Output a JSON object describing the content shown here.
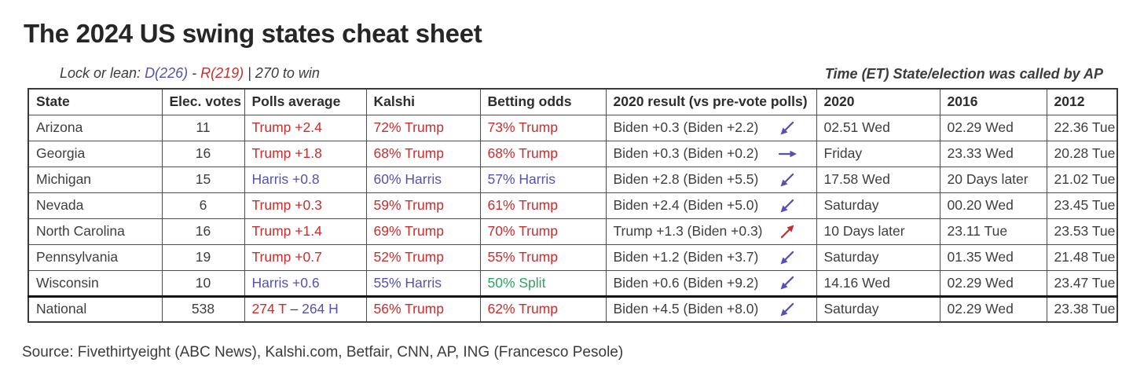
{
  "title": "The 2024 US swing states cheat sheet",
  "subtitle": {
    "prefix": "Lock or lean: ",
    "dem": "D(226)",
    "sep": " - ",
    "rep": "R(219)",
    "suffix": " | 270 to win"
  },
  "right_note": "Time (ET) State/election was called by AP",
  "source": "Source: Fivethirtyeight (ABC News), Kalshi.com, Betfair, CNN, AP, ING (Francesco Pesole)",
  "colors": {
    "red": "#cc2c2c",
    "blue": "#5551ae",
    "green": "#2ba45f",
    "dark": "#3e3e3e"
  },
  "chart_data": {
    "type": "table",
    "columns": [
      "State",
      "Elec. votes",
      "Polls average",
      "Kalshi",
      "Betting odds",
      "2020 result (vs pre-vote polls)",
      "2020",
      "2016",
      "2012"
    ],
    "rows": [
      {
        "state": "Arizona",
        "votes": "11",
        "polls": [
          {
            "t": "Trump +2.4",
            "c": "red"
          }
        ],
        "kalshi": [
          {
            "t": "72% Trump",
            "c": "red"
          }
        ],
        "betting": [
          {
            "t": "73% Trump",
            "c": "red"
          }
        ],
        "result": {
          "text": "Biden +0.3 (Biden +2.2)",
          "arrow": "down-left",
          "arrow_color": "blue"
        },
        "t2020": "02.51 Wed",
        "t2016": "02.29 Wed",
        "t2012": "22.36 Tue"
      },
      {
        "state": "Georgia",
        "votes": "16",
        "polls": [
          {
            "t": "Trump +1.8",
            "c": "red"
          }
        ],
        "kalshi": [
          {
            "t": "68% Trump",
            "c": "red"
          }
        ],
        "betting": [
          {
            "t": "68% Trump",
            "c": "red"
          }
        ],
        "result": {
          "text": "Biden +0.3 (Biden +0.2)",
          "arrow": "right",
          "arrow_color": "blue"
        },
        "t2020": "Friday",
        "t2016": "23.33 Wed",
        "t2012": "20.28 Tue"
      },
      {
        "state": "Michigan",
        "votes": "15",
        "polls": [
          {
            "t": "Harris +0.8",
            "c": "blue"
          }
        ],
        "kalshi": [
          {
            "t": "60% Harris",
            "c": "blue"
          }
        ],
        "betting": [
          {
            "t": "57% Harris",
            "c": "blue"
          }
        ],
        "result": {
          "text": "Biden +2.8 (Biden +5.5)",
          "arrow": "down-left",
          "arrow_color": "blue"
        },
        "t2020": "17.58 Wed",
        "t2016": "20 Days later",
        "t2012": "21.02 Tue"
      },
      {
        "state": "Nevada",
        "votes": "6",
        "polls": [
          {
            "t": "Trump +0.3",
            "c": "red"
          }
        ],
        "kalshi": [
          {
            "t": "59% Trump",
            "c": "red"
          }
        ],
        "betting": [
          {
            "t": "61% Trump",
            "c": "red"
          }
        ],
        "result": {
          "text": "Biden +2.4 (Biden +5.0)",
          "arrow": "down-left",
          "arrow_color": "blue"
        },
        "t2020": "Saturday",
        "t2016": "00.20 Wed",
        "t2012": "23.45 Tue"
      },
      {
        "state": "North Carolina",
        "votes": "16",
        "polls": [
          {
            "t": "Trump +1.4",
            "c": "red"
          }
        ],
        "kalshi": [
          {
            "t": "69% Trump",
            "c": "red"
          }
        ],
        "betting": [
          {
            "t": "70% Trump",
            "c": "red"
          }
        ],
        "result": {
          "text": "Trump +1.3 (Biden +0.3)",
          "arrow": "up-right",
          "arrow_color": "red"
        },
        "t2020": "10 Days later",
        "t2016": "23.11 Tue",
        "t2012": "23.53 Tue"
      },
      {
        "state": "Pennsylvania",
        "votes": "19",
        "polls": [
          {
            "t": "Trump +0.7",
            "c": "red"
          }
        ],
        "kalshi": [
          {
            "t": "52% Trump",
            "c": "red"
          }
        ],
        "betting": [
          {
            "t": "55% Trump",
            "c": "red"
          }
        ],
        "result": {
          "text": "Biden +1.2 (Biden +3.7)",
          "arrow": "down-left",
          "arrow_color": "blue"
        },
        "t2020": "Saturday",
        "t2016": "01.35 Wed",
        "t2012": "21.48 Tue"
      },
      {
        "state": "Wisconsin",
        "votes": "10",
        "polls": [
          {
            "t": "Harris +0.6",
            "c": "blue"
          }
        ],
        "kalshi": [
          {
            "t": "55% Harris",
            "c": "blue"
          }
        ],
        "betting": [
          {
            "t": "50% Split",
            "c": "green"
          }
        ],
        "result": {
          "text": "Biden +0.6 (Biden +9.2)",
          "arrow": "down-left",
          "arrow_color": "blue"
        },
        "t2020": "14.16 Wed",
        "t2016": "02.29 Wed",
        "t2012": "23.47 Tue"
      },
      {
        "state": "National",
        "votes": "538",
        "separator": true,
        "polls": [
          {
            "t": "274 T",
            "c": "red"
          },
          {
            "t": " – ",
            "c": "dark"
          },
          {
            "t": "264 H",
            "c": "blue"
          }
        ],
        "kalshi": [
          {
            "t": "56% Trump",
            "c": "red"
          }
        ],
        "betting": [
          {
            "t": "62% Trump",
            "c": "red"
          }
        ],
        "result": {
          "text": "Biden +4.5 (Biden +8.0)",
          "arrow": "down-left",
          "arrow_color": "blue"
        },
        "t2020": "Saturday",
        "t2016": "02.29 Wed",
        "t2012": "23.38 Tue"
      }
    ]
  }
}
